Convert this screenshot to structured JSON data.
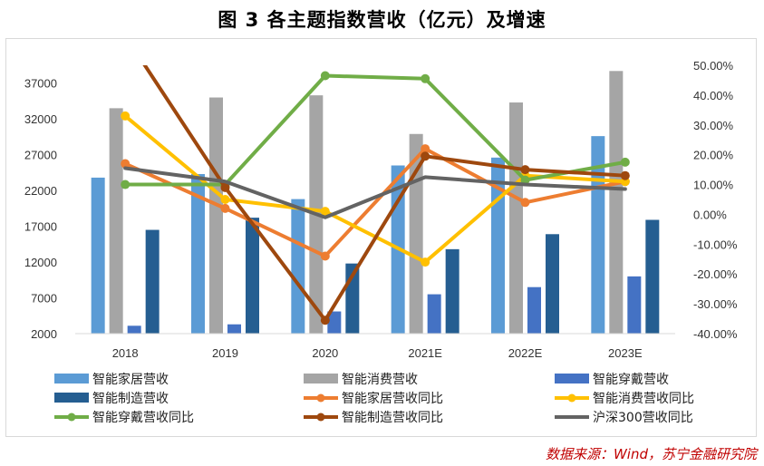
{
  "title": "图 3  各主题指数营收（亿元）及增速",
  "source": "数据来源：Wind，苏宁金融研究院",
  "chart_data": {
    "type": "bar",
    "categories": [
      "2018",
      "2019",
      "2020",
      "2021E",
      "2022E",
      "2023E"
    ],
    "left_axis": {
      "min": 2000,
      "max": 40000,
      "ticks": [
        "2000",
        "7000",
        "12000",
        "17000",
        "22000",
        "27000",
        "32000",
        "37000"
      ]
    },
    "right_axis": {
      "min": -0.4,
      "max": 0.5,
      "ticks": [
        "-40.00%",
        "-30.00%",
        "-20.00%",
        "-10.00%",
        "0.00%",
        "10.00%",
        "20.00%",
        "30.00%",
        "40.00%",
        "50.00%"
      ]
    },
    "bar_series": [
      {
        "name": "智能家居营收",
        "color": "#5b9bd5",
        "values": [
          23800,
          24300,
          20800,
          25500,
          26600,
          29600
        ]
      },
      {
        "name": "智能消费营收",
        "color": "#a5a5a5",
        "values": [
          33500,
          35000,
          35300,
          29900,
          34300,
          38700
        ]
      },
      {
        "name": "智能穿戴营收",
        "color": "#4472c4",
        "values": [
          3100,
          3300,
          5100,
          7500,
          8500,
          10000
        ]
      },
      {
        "name": "智能制造营收",
        "color": "#255e91",
        "values": [
          16500,
          18200,
          11800,
          13800,
          15900,
          17900
        ]
      }
    ],
    "line_series": [
      {
        "name": "智能家居营收同比",
        "color": "#ed7d31",
        "values": [
          0.17,
          0.02,
          -0.14,
          0.22,
          0.04,
          0.11
        ]
      },
      {
        "name": "智能消费营收同比",
        "color": "#ffc000",
        "values": [
          0.33,
          0.05,
          0.01,
          -0.16,
          0.13,
          0.11
        ]
      },
      {
        "name": "智能穿戴营收同比",
        "color": "#70ad47",
        "values": [
          0.1,
          0.1,
          0.465,
          0.455,
          0.115,
          0.175
        ]
      },
      {
        "name": "智能制造营收同比",
        "color": "#9e480e",
        "values": [
          0.6,
          0.09,
          -0.355,
          0.195,
          0.15,
          0.13
        ]
      },
      {
        "name": "沪深300营收同比",
        "color": "#636363",
        "values": [
          0.155,
          0.11,
          -0.01,
          0.125,
          0.1,
          0.085
        ]
      }
    ],
    "legend_position": "bottom",
    "grid": false
  }
}
